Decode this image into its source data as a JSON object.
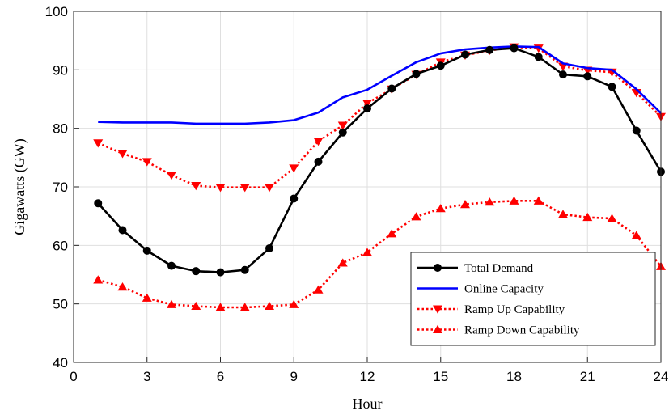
{
  "chart_data": {
    "type": "line",
    "xlabel": "Hour",
    "ylabel": "Gigawatts (GW)",
    "xlim": [
      0,
      24
    ],
    "ylim": [
      40,
      100
    ],
    "xticks": [
      0,
      3,
      6,
      9,
      12,
      15,
      18,
      21,
      24
    ],
    "yticks": [
      40,
      50,
      60,
      70,
      80,
      90,
      100
    ],
    "grid": true,
    "legend_position": "bottom-right",
    "x": [
      1,
      2,
      3,
      4,
      5,
      6,
      7,
      8,
      9,
      10,
      11,
      12,
      13,
      14,
      15,
      16,
      17,
      18,
      19,
      20,
      21,
      22,
      23,
      24
    ],
    "series": [
      {
        "name": "Total Demand",
        "color": "#000000",
        "line": "solid",
        "marker": "circle",
        "values": [
          67.2,
          62.6,
          59.1,
          56.5,
          55.6,
          55.4,
          55.8,
          59.5,
          68.0,
          74.3,
          79.3,
          83.4,
          86.8,
          89.3,
          90.7,
          92.6,
          93.4,
          93.7,
          92.2,
          89.2,
          88.9,
          87.1,
          79.6,
          72.6
        ]
      },
      {
        "name": "Online Capacity",
        "color": "#0000ff",
        "line": "solid",
        "marker": "none",
        "values": [
          81.1,
          81.0,
          81.0,
          81.0,
          80.8,
          80.8,
          80.8,
          81.0,
          81.4,
          82.7,
          85.3,
          86.6,
          89.0,
          91.3,
          92.8,
          93.5,
          93.8,
          94.0,
          93.9,
          91.1,
          90.3,
          90.0,
          86.7,
          82.6
        ]
      },
      {
        "name": "Ramp Up Capability",
        "color": "#ff0000",
        "line": "dotted",
        "marker": "triangle-down",
        "values": [
          77.5,
          75.7,
          74.3,
          72.0,
          70.2,
          69.9,
          69.9,
          69.9,
          73.2,
          77.8,
          80.5,
          84.3,
          86.7,
          89.2,
          91.3,
          92.5,
          93.3,
          93.9,
          93.7,
          90.6,
          89.9,
          89.6,
          86.1,
          82.0
        ]
      },
      {
        "name": "Ramp Down Capability",
        "color": "#ff0000",
        "line": "dotted",
        "marker": "triangle-up",
        "values": [
          54.1,
          52.9,
          51.0,
          49.9,
          49.6,
          49.4,
          49.4,
          49.6,
          49.9,
          52.4,
          57.0,
          58.8,
          62.0,
          64.9,
          66.3,
          67.0,
          67.4,
          67.6,
          67.6,
          65.3,
          64.8,
          64.6,
          61.7,
          56.4
        ]
      }
    ]
  }
}
